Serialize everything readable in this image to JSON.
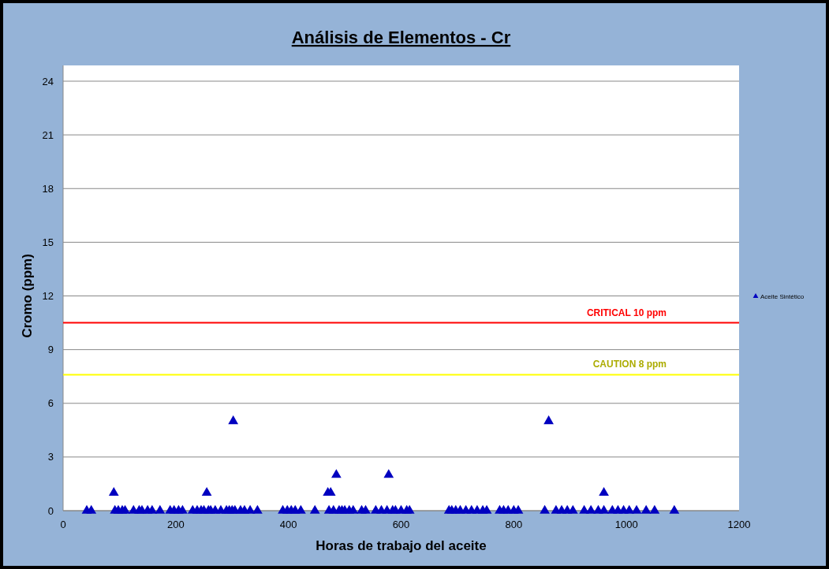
{
  "chart_data": {
    "type": "scatter",
    "title": "Análisis de Elementos - Cr",
    "xlabel": "Horas de trabajo del aceite",
    "ylabel": "Cromo (ppm)",
    "xlim": [
      0,
      1200
    ],
    "xticks": [
      0,
      200,
      400,
      600,
      800,
      1000,
      1200
    ],
    "ylim": [
      0,
      24
    ],
    "yticks": [
      0,
      3,
      6,
      9,
      12,
      15,
      18,
      21,
      24
    ],
    "grid": "y",
    "legend": "right",
    "marker": "triangle",
    "series": [
      {
        "name": "Aceite Sintético",
        "color": "#0000c0",
        "x": [
          42,
          50,
          90,
          92,
          98,
          105,
          110,
          125,
          135,
          140,
          150,
          158,
          172,
          190,
          197,
          205,
          212,
          230,
          238,
          245,
          250,
          255,
          258,
          262,
          270,
          280,
          290,
          295,
          300,
          302,
          305,
          315,
          322,
          332,
          345,
          390,
          398,
          405,
          412,
          422,
          447,
          470,
          472,
          475,
          480,
          485,
          490,
          495,
          500,
          508,
          515,
          530,
          537,
          555,
          565,
          575,
          578,
          585,
          590,
          600,
          610,
          615,
          685,
          690,
          697,
          705,
          715,
          725,
          735,
          745,
          752,
          775,
          782,
          790,
          800,
          808,
          855,
          862,
          875,
          885,
          895,
          905,
          925,
          937,
          950,
          960,
          960,
          975,
          985,
          995,
          1005,
          1018,
          1035,
          1050,
          1085
        ],
        "values": [
          0,
          0,
          1,
          0,
          0,
          0,
          0,
          0,
          0,
          0,
          0,
          0,
          0,
          0,
          0,
          0,
          0,
          0,
          0,
          0,
          0,
          1,
          0,
          0,
          0,
          0,
          0,
          0,
          0,
          5,
          0,
          0,
          0,
          0,
          0,
          0,
          0,
          0,
          0,
          0,
          0,
          1,
          0,
          1,
          0,
          2,
          0,
          0,
          0,
          0,
          0,
          0,
          0,
          0,
          0,
          0,
          2,
          0,
          0,
          0,
          0,
          0,
          0,
          0,
          0,
          0,
          0,
          0,
          0,
          0,
          0,
          0,
          0,
          0,
          0,
          0,
          0,
          5,
          0,
          0,
          0,
          0,
          0,
          0,
          0,
          0,
          1,
          0,
          0,
          0,
          0,
          0,
          0,
          0,
          0
        ]
      }
    ],
    "ref_lines": [
      {
        "axis": "y",
        "value": 10.5,
        "label": "CRITICAL  10 ppm",
        "color": "#ff0000"
      },
      {
        "axis": "y",
        "value": 7.6,
        "label": "CAUTION  8 ppm",
        "color": "#ffff00"
      }
    ]
  }
}
